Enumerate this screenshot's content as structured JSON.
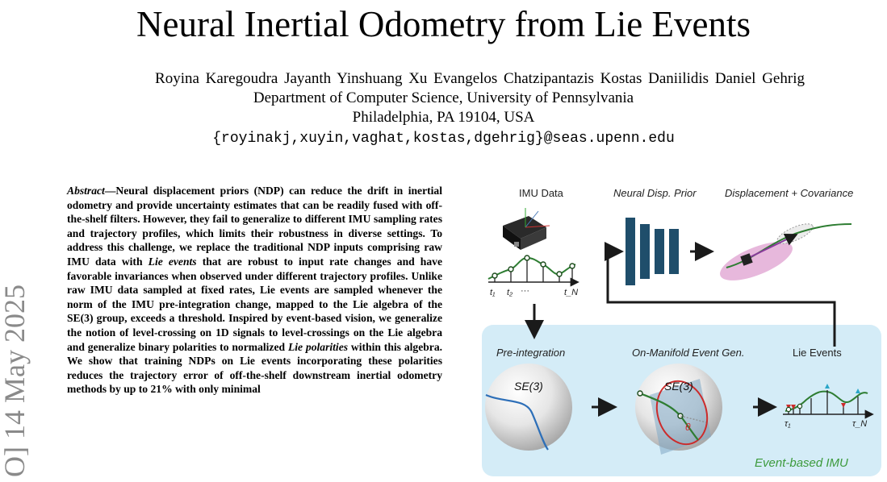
{
  "paper": {
    "title": "Neural Inertial Odometry from Lie Events",
    "authors": "Royina Karegoudra Jayanth   Yinshuang Xu   Evangelos Chatzipantazis   Kostas Daniilidis   Daniel Gehrig",
    "affiliation_line1": "Department of Computer Science, University of Pennsylvania",
    "affiliation_line2": "Philadelphia, PA 19104, USA",
    "emails": "{royinakj,xuyin,vaghat,kostas,dgehrig}@seas.upenn.edu",
    "arxiv_stamp": "O] 14 May 2025"
  },
  "abstract": {
    "lead": "Abstract",
    "dash": "—",
    "part1": "Neural displacement priors (NDP) can reduce the drift in inertial odometry and provide uncertainty estimates that can be readily fused with off-the-shelf filters. However, they fail to generalize to different IMU sampling rates and trajectory profiles, which limits their robustness in diverse settings. To address this challenge, we replace the traditional NDP inputs comprising raw IMU data with ",
    "em1": "Lie events",
    "part2": " that are robust to input rate changes and have favorable invariances when observed under different trajectory profiles. Unlike raw IMU data sampled at fixed rates, Lie events are sampled whenever the norm of the IMU pre-integration change, mapped to the Lie algebra of the SE(3) group, exceeds a threshold. Inspired by event-based vision, we generalize the notion of level-crossing on 1D signals to level-crossings on the Lie algebra and generalize binary polarities to normalized ",
    "em2": "Lie polarities",
    "part3": " within this algebra. We show that training NDPs on Lie events incorporating these polarities reduces the trajectory error of off-the-shelf downstream inertial odometry methods by up to 21% with only minimal"
  },
  "figure": {
    "label_imu_data": "IMU Data",
    "label_ndp": "Neural Disp. Prior",
    "label_disp_cov": "Displacement + Covariance",
    "label_preint": "Pre-integration",
    "label_onmanifold": "On-Manifold Event Gen.",
    "label_lie_events": "Lie Events",
    "label_event_imu": "Event-based IMU",
    "sphere_label_1": "SE(3)",
    "sphere_label_2": "SE(3)",
    "theta": "θ",
    "tick_t1": "t₁",
    "tick_t2": "t₂",
    "tick_dots": "···",
    "tick_tn": "t_N",
    "tick_tau1": "τ₁",
    "tick_taun": "τ_N",
    "colors": {
      "panel": "#d4ecf7",
      "network": "#1f4e6b",
      "curve_green": "#2e7d32",
      "event_text_green": "#3c9a3c",
      "event_red": "#cc2b2b",
      "event_blue": "#2aa6c8",
      "ellipse_pink": "#e7b8dc",
      "trajectory_purple": "#8a3a9c"
    }
  }
}
